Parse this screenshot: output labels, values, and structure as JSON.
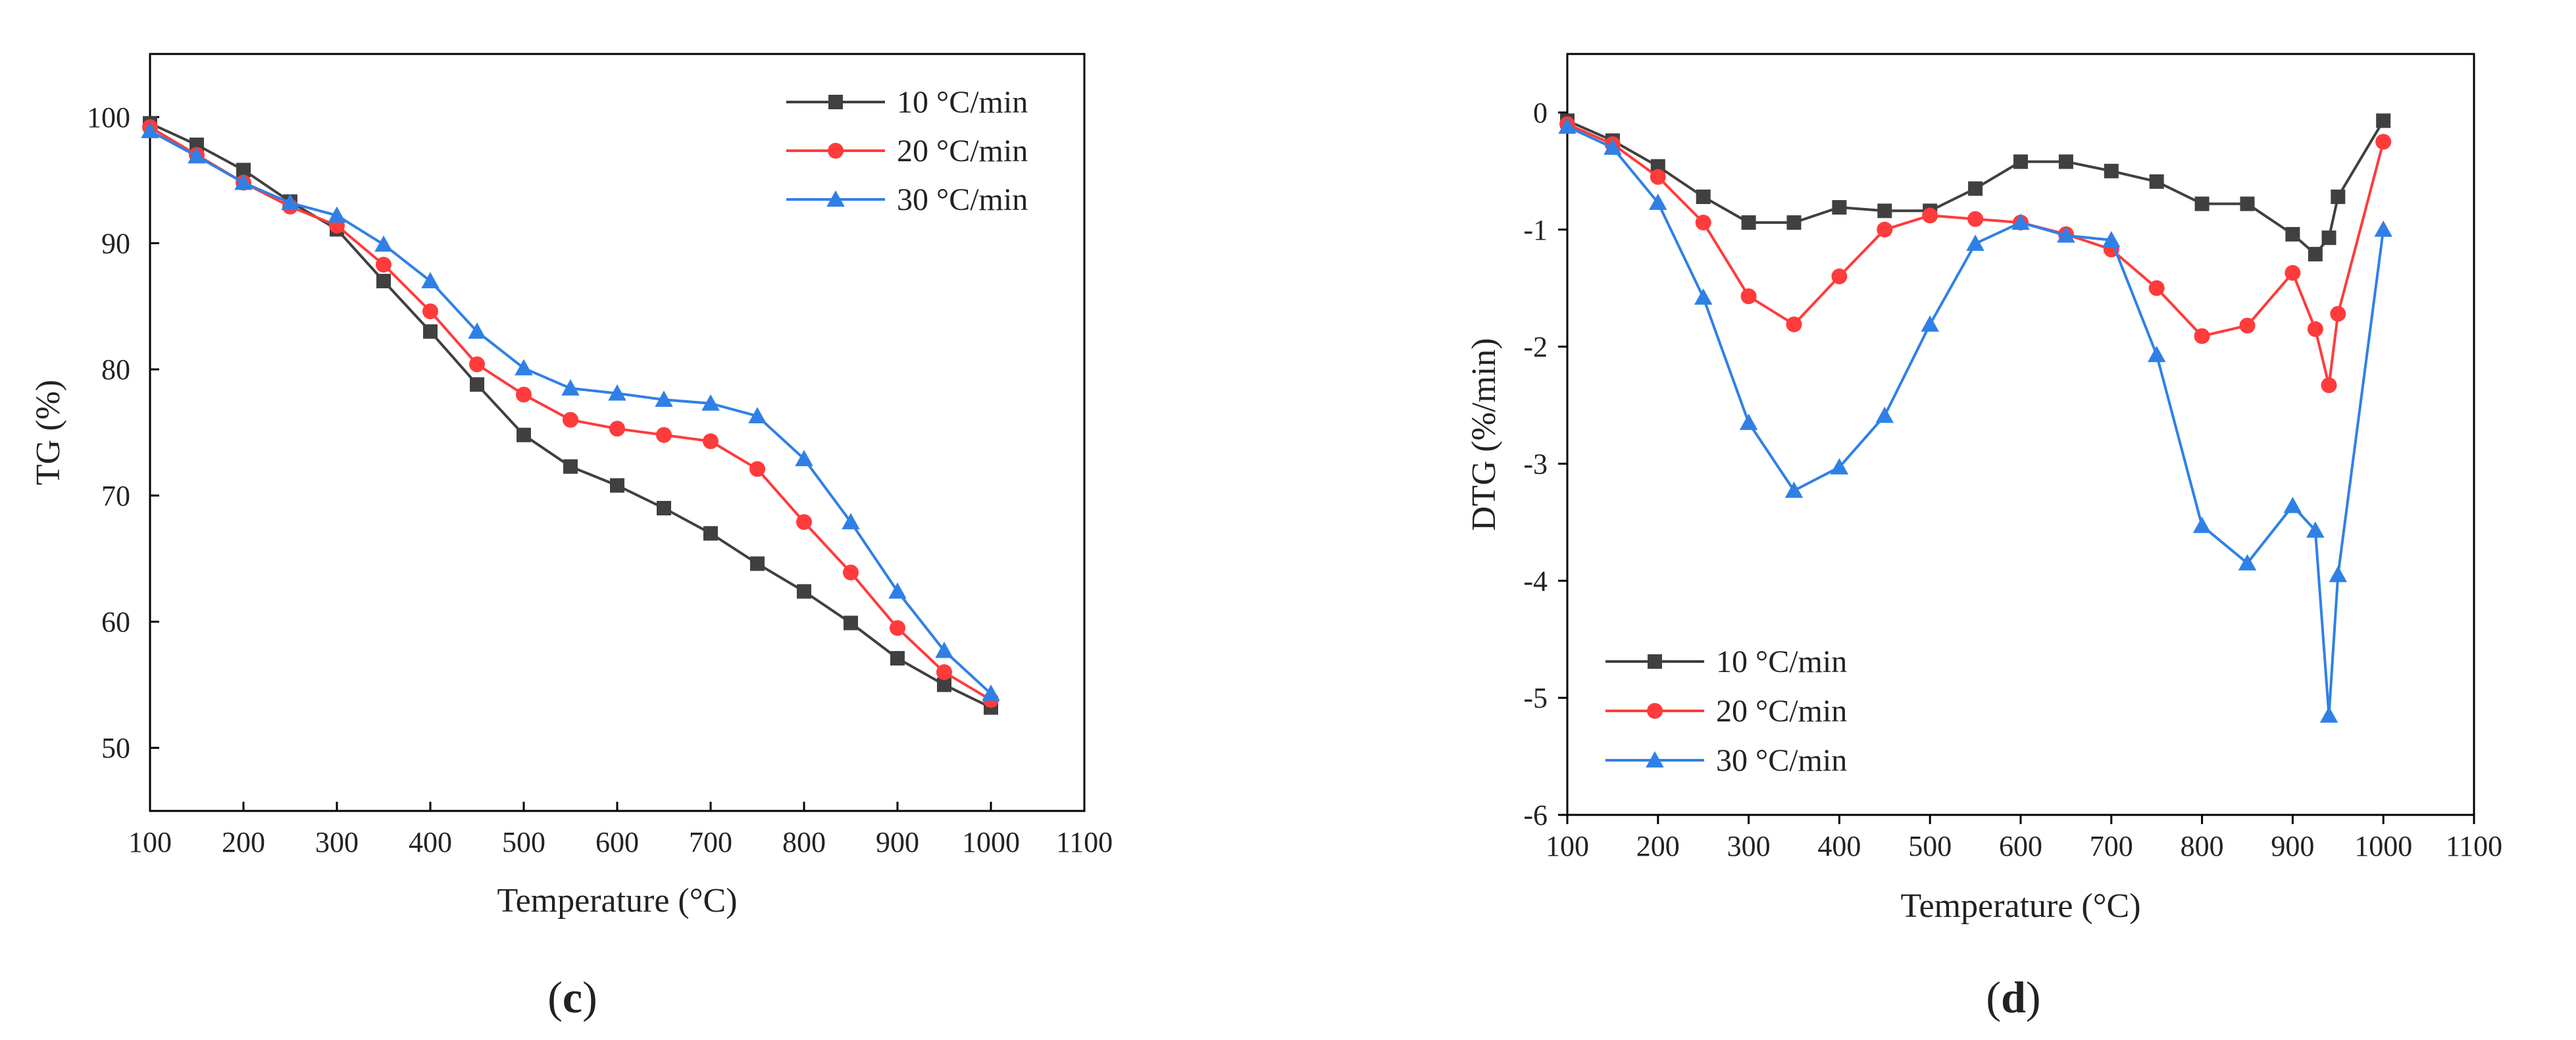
{
  "chart_data": [
    {
      "type": "line",
      "panel_label": "(c)",
      "panel_letter": "c",
      "xlabel": "Temperature (°C)",
      "ylabel": "TG (%)",
      "xlim": [
        100,
        1100
      ],
      "ylim": [
        45,
        105
      ],
      "xticks": [
        100,
        200,
        300,
        400,
        500,
        600,
        700,
        800,
        900,
        1000,
        1100
      ],
      "yticks": [
        50,
        60,
        70,
        80,
        90,
        100
      ],
      "legend_position": "top-right",
      "series": [
        {
          "name": "10 °C/min",
          "color": "#404040",
          "marker": "square",
          "x": [
            100,
            150,
            200,
            250,
            300,
            350,
            400,
            450,
            500,
            550,
            600,
            650,
            700,
            750,
            800,
            850,
            900,
            950,
            1000
          ],
          "y": [
            99.5,
            97.8,
            95.8,
            93.3,
            91.1,
            87.0,
            83.0,
            78.8,
            74.8,
            72.3,
            70.8,
            69.0,
            67.0,
            64.6,
            62.4,
            59.9,
            57.1,
            55.0,
            53.2
          ]
        },
        {
          "name": "20 °C/min",
          "color": "#ff3b3b",
          "marker": "circle",
          "x": [
            100,
            150,
            200,
            250,
            300,
            350,
            400,
            450,
            500,
            550,
            600,
            650,
            700,
            750,
            800,
            850,
            900,
            950,
            1000
          ],
          "y": [
            99.2,
            97.0,
            94.8,
            92.9,
            91.4,
            88.3,
            84.6,
            80.4,
            78.0,
            76.0,
            75.3,
            74.8,
            74.3,
            72.1,
            67.9,
            63.9,
            59.5,
            56.0,
            53.8
          ]
        },
        {
          "name": "30 °C/min",
          "color": "#2f80e6",
          "marker": "triangle",
          "x": [
            100,
            150,
            200,
            250,
            300,
            350,
            400,
            450,
            500,
            550,
            600,
            650,
            700,
            750,
            800,
            850,
            900,
            950,
            1000
          ],
          "y": [
            98.9,
            96.9,
            94.8,
            93.2,
            92.2,
            89.9,
            87.0,
            83.0,
            80.1,
            78.5,
            78.1,
            77.6,
            77.3,
            76.3,
            72.9,
            67.9,
            62.4,
            57.7,
            54.3
          ]
        }
      ]
    },
    {
      "type": "line",
      "panel_label": "(d)",
      "panel_letter": "d",
      "xlabel": "Temperature (°C)",
      "ylabel": "DTG (%/min)",
      "xlim": [
        100,
        1100
      ],
      "ylim": [
        -6,
        0.5
      ],
      "xticks": [
        100,
        200,
        300,
        400,
        500,
        600,
        700,
        800,
        900,
        1000,
        1100
      ],
      "yticks": [
        0,
        -1,
        -2,
        -3,
        -4,
        -5,
        -6
      ],
      "legend_position": "bottom-left",
      "series": [
        {
          "name": "10 °C/min",
          "color": "#404040",
          "marker": "square",
          "x": [
            100,
            150,
            200,
            250,
            300,
            350,
            400,
            450,
            500,
            550,
            600,
            650,
            700,
            750,
            800,
            850,
            900,
            925,
            940,
            950,
            1000
          ],
          "y": [
            -0.07,
            -0.24,
            -0.46,
            -0.72,
            -0.94,
            -0.94,
            -0.81,
            -0.84,
            -0.84,
            -0.65,
            -0.42,
            -0.42,
            -0.5,
            -0.59,
            -0.78,
            -0.78,
            -1.04,
            -1.21,
            -1.07,
            -0.72,
            -0.07
          ]
        },
        {
          "name": "20 °C/min",
          "color": "#ff3b3b",
          "marker": "circle",
          "x": [
            100,
            150,
            200,
            250,
            300,
            350,
            400,
            450,
            500,
            550,
            600,
            650,
            700,
            750,
            800,
            850,
            900,
            925,
            940,
            950,
            1000
          ],
          "y": [
            -0.1,
            -0.27,
            -0.55,
            -0.94,
            -1.57,
            -1.81,
            -1.4,
            -1.0,
            -0.88,
            -0.91,
            -0.94,
            -1.04,
            -1.17,
            -1.5,
            -1.91,
            -1.82,
            -1.37,
            -1.85,
            -2.33,
            -1.72,
            -0.25
          ]
        },
        {
          "name": "30 °C/min",
          "color": "#2f80e6",
          "marker": "triangle",
          "x": [
            100,
            150,
            200,
            250,
            300,
            350,
            400,
            450,
            500,
            550,
            600,
            650,
            700,
            750,
            800,
            850,
            900,
            925,
            940,
            950,
            1000
          ],
          "y": [
            -0.12,
            -0.3,
            -0.77,
            -1.58,
            -2.65,
            -3.23,
            -3.03,
            -2.59,
            -1.81,
            -1.12,
            -0.94,
            -1.05,
            -1.09,
            -2.07,
            -3.53,
            -3.85,
            -3.36,
            -3.57,
            -5.15,
            -3.95,
            -1.0
          ]
        }
      ]
    }
  ]
}
